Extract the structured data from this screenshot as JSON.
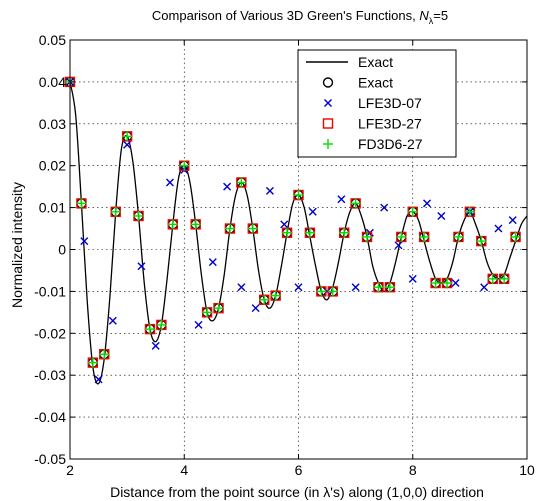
{
  "chart_data": {
    "type": "line",
    "title": "Comparison of Various 3D Green's Functions, ",
    "title_symbol": "N",
    "title_subscript": "λ",
    "title_suffix": "=5",
    "xlabel": "Distance from the point source (in λ's) along (1,0,0) direction",
    "ylabel": "Normalized intensity",
    "xlim": [
      2,
      10
    ],
    "ylim": [
      -0.05,
      0.05
    ],
    "xticks": [
      2,
      4,
      6,
      8,
      10
    ],
    "yticks": [
      -0.05,
      -0.04,
      -0.03,
      -0.02,
      -0.01,
      0,
      0.01,
      0.02,
      0.03,
      0.04,
      0.05
    ],
    "ytick_labels": [
      "-0.05",
      "-0.04",
      "-0.03",
      "-0.02",
      "-0.01",
      "0",
      "0.01",
      "0.02",
      "0.03",
      "0.04",
      "0.05"
    ],
    "grid": true,
    "legend_position": "top-right",
    "series": [
      {
        "name": "Exact",
        "kind": "line",
        "color": "#000000",
        "x": [
          2.0,
          2.1,
          2.2,
          2.3,
          2.4,
          2.5,
          2.6,
          2.7,
          2.8,
          2.9,
          3.0,
          3.1,
          3.2,
          3.3,
          3.4,
          3.5,
          3.6,
          3.7,
          3.8,
          3.9,
          4.0,
          4.1,
          4.2,
          4.3,
          4.4,
          4.5,
          4.6,
          4.7,
          4.8,
          4.9,
          5.0,
          5.1,
          5.2,
          5.3,
          5.4,
          5.5,
          5.6,
          5.7,
          5.8,
          5.9,
          6.0,
          6.1,
          6.2,
          6.3,
          6.4,
          6.5,
          6.6,
          6.7,
          6.8,
          6.9,
          7.0,
          7.1,
          7.2,
          7.3,
          7.4,
          7.5,
          7.6,
          7.7,
          7.8,
          7.9,
          8.0,
          8.1,
          8.2,
          8.3,
          8.4,
          8.5,
          8.6,
          8.7,
          8.8,
          8.9,
          9.0,
          9.1,
          9.2,
          9.3,
          9.4,
          9.5,
          9.6,
          9.7,
          9.8,
          9.9,
          10.0
        ],
        "y": [
          0.04,
          0.032,
          0.011,
          -0.012,
          -0.028,
          -0.032,
          -0.026,
          -0.011,
          0.009,
          0.024,
          0.027,
          0.021,
          0.008,
          -0.008,
          -0.019,
          -0.022,
          -0.018,
          -0.007,
          0.006,
          0.017,
          0.02,
          0.016,
          0.006,
          -0.006,
          -0.015,
          -0.017,
          -0.014,
          -0.006,
          0.005,
          0.013,
          0.016,
          0.013,
          0.005,
          -0.005,
          -0.012,
          -0.014,
          -0.011,
          -0.004,
          0.004,
          0.011,
          0.013,
          0.01,
          0.003,
          -0.004,
          -0.01,
          -0.012,
          -0.009,
          -0.003,
          0.004,
          0.009,
          0.011,
          0.008,
          0.003,
          -0.004,
          -0.008,
          -0.01,
          -0.008,
          -0.003,
          0.003,
          0.008,
          0.009,
          0.007,
          0.002,
          -0.003,
          -0.007,
          -0.008,
          -0.007,
          -0.003,
          0.003,
          0.007,
          0.009,
          0.006,
          0.002,
          -0.003,
          -0.006,
          -0.007,
          -0.006,
          -0.002,
          0.002,
          0.006,
          0.008
        ]
      },
      {
        "name": "Exact",
        "kind": "marker",
        "marker": "circle",
        "color": "#000000",
        "x": [
          2.0,
          2.2,
          2.4,
          2.6,
          2.8,
          3.0,
          3.2,
          3.4,
          3.6,
          3.8,
          4.0,
          4.2,
          4.4,
          4.6,
          4.8,
          5.0,
          5.2,
          5.4,
          5.6,
          5.8,
          6.0,
          6.2,
          6.4,
          6.6,
          6.8,
          7.0,
          7.2,
          7.4,
          7.6,
          7.8,
          8.0,
          8.2,
          8.4,
          8.6,
          8.8,
          9.0,
          9.2,
          9.4,
          9.6,
          9.8
        ],
        "y": [
          0.04,
          0.011,
          -0.027,
          -0.025,
          0.009,
          0.027,
          0.008,
          -0.019,
          -0.018,
          0.006,
          0.02,
          0.006,
          -0.015,
          -0.014,
          0.005,
          0.016,
          0.005,
          -0.012,
          -0.011,
          0.004,
          0.013,
          0.004,
          -0.01,
          -0.01,
          0.004,
          0.011,
          0.003,
          -0.009,
          -0.009,
          0.003,
          0.009,
          0.003,
          -0.008,
          -0.008,
          0.003,
          0.009,
          0.002,
          -0.007,
          -0.007,
          0.003
        ]
      },
      {
        "name": "LFE3D-07",
        "kind": "marker",
        "marker": "x",
        "color": "#0000cc",
        "x": [
          2.0,
          2.25,
          2.5,
          2.75,
          3.0,
          3.25,
          3.5,
          3.75,
          4.0,
          4.25,
          4.5,
          4.75,
          5.0,
          5.25,
          5.5,
          5.75,
          6.0,
          6.25,
          6.5,
          6.75,
          7.0,
          7.25,
          7.5,
          7.75,
          8.0,
          8.25,
          8.5,
          8.75,
          9.0,
          9.25,
          9.5,
          9.75
        ],
        "y": [
          0.04,
          0.002,
          -0.031,
          -0.017,
          0.025,
          -0.004,
          -0.023,
          0.016,
          0.019,
          -0.018,
          -0.003,
          0.015,
          -0.009,
          -0.014,
          0.014,
          0.006,
          -0.009,
          0.009,
          -0.01,
          0.012,
          -0.009,
          0.004,
          0.01,
          0.001,
          -0.007,
          0.011,
          0.008,
          -0.008,
          0.009,
          -0.009,
          0.005,
          0.007
        ]
      },
      {
        "name": "LFE3D-27",
        "kind": "marker",
        "marker": "square",
        "color": "#ee0000",
        "x": [
          2.0,
          2.2,
          2.4,
          2.6,
          2.8,
          3.0,
          3.2,
          3.4,
          3.6,
          3.8,
          4.0,
          4.2,
          4.4,
          4.6,
          4.8,
          5.0,
          5.2,
          5.4,
          5.6,
          5.8,
          6.0,
          6.2,
          6.4,
          6.6,
          6.8,
          7.0,
          7.2,
          7.4,
          7.6,
          7.8,
          8.0,
          8.2,
          8.4,
          8.6,
          8.8,
          9.0,
          9.2,
          9.4,
          9.6,
          9.8
        ],
        "y": [
          0.04,
          0.011,
          -0.027,
          -0.025,
          0.009,
          0.027,
          0.008,
          -0.019,
          -0.018,
          0.006,
          0.02,
          0.006,
          -0.015,
          -0.014,
          0.005,
          0.016,
          0.005,
          -0.012,
          -0.011,
          0.004,
          0.013,
          0.004,
          -0.01,
          -0.01,
          0.004,
          0.011,
          0.003,
          -0.009,
          -0.009,
          0.003,
          0.009,
          0.003,
          -0.008,
          -0.008,
          0.003,
          0.009,
          0.002,
          -0.007,
          -0.007,
          0.003
        ]
      },
      {
        "name": "FD3D6-27",
        "kind": "marker",
        "marker": "plus",
        "color": "#00dd00",
        "x": [
          2.0,
          2.2,
          2.4,
          2.6,
          2.8,
          3.0,
          3.2,
          3.4,
          3.6,
          3.8,
          4.0,
          4.2,
          4.4,
          4.6,
          4.8,
          5.0,
          5.2,
          5.4,
          5.6,
          5.8,
          6.0,
          6.2,
          6.4,
          6.6,
          6.8,
          7.0,
          7.2,
          7.4,
          7.6,
          7.8,
          8.0,
          8.2,
          8.4,
          8.6,
          8.8,
          9.0,
          9.2,
          9.4,
          9.6,
          9.8
        ],
        "y": [
          0.04,
          0.011,
          -0.027,
          -0.025,
          0.009,
          0.027,
          0.008,
          -0.019,
          -0.018,
          0.006,
          0.02,
          0.006,
          -0.015,
          -0.014,
          0.005,
          0.016,
          0.005,
          -0.012,
          -0.011,
          0.004,
          0.013,
          0.004,
          -0.01,
          -0.01,
          0.004,
          0.011,
          0.003,
          -0.009,
          -0.009,
          0.003,
          0.009,
          0.003,
          -0.008,
          -0.008,
          0.003,
          0.009,
          0.002,
          -0.007,
          -0.007,
          0.003
        ]
      }
    ]
  }
}
